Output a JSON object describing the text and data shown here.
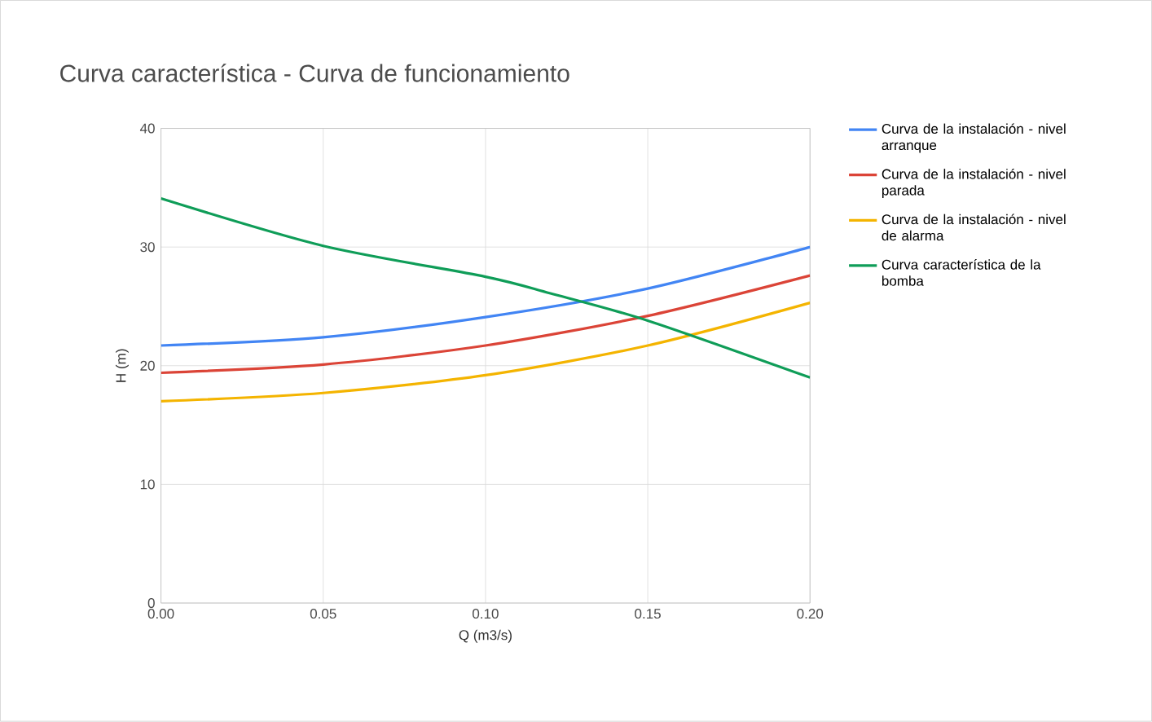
{
  "chart_data": {
    "type": "line",
    "title": "Curva característica - Curva de funcionamiento",
    "xlabel": "Q (m3/s)",
    "ylabel": "H (m)",
    "x": [
      0,
      0.05,
      0.1,
      0.15,
      0.2
    ],
    "series": [
      {
        "name": "Curva de la instalación - nivel arranque",
        "color": "#4285f4",
        "values": [
          21.7,
          22.4,
          24.1,
          26.5,
          30
        ]
      },
      {
        "name": "Curva de la instalación - nivel parada",
        "color": "#db4437",
        "values": [
          19.4,
          20.1,
          21.7,
          24.2,
          27.6
        ]
      },
      {
        "name": "Curva de la instalación - nivel de alarma",
        "color": "#f4b400",
        "values": [
          17,
          17.7,
          19.2,
          21.7,
          25.3
        ]
      },
      {
        "name": "Curva característica de la bomba",
        "color": "#0f9d58",
        "x": [
          0,
          0.05,
          0.1,
          0.12,
          0.15,
          0.2
        ],
        "values": [
          34.1,
          30.1,
          27.5,
          26.1,
          23.8,
          19
        ]
      }
    ],
    "xlim": [
      0,
      0.2
    ],
    "ylim": [
      0,
      40
    ],
    "xticks": [
      {
        "value": 0,
        "label": "0.00"
      },
      {
        "value": 0.05,
        "label": "0.05"
      },
      {
        "value": 0.1,
        "label": "0.10"
      },
      {
        "value": 0.15,
        "label": "0.15"
      },
      {
        "value": 0.2,
        "label": "0.20"
      }
    ],
    "yticks": [
      0,
      10,
      20,
      30,
      40
    ],
    "grid": true,
    "legend": "right",
    "marker": "none",
    "line_style": "solid"
  }
}
